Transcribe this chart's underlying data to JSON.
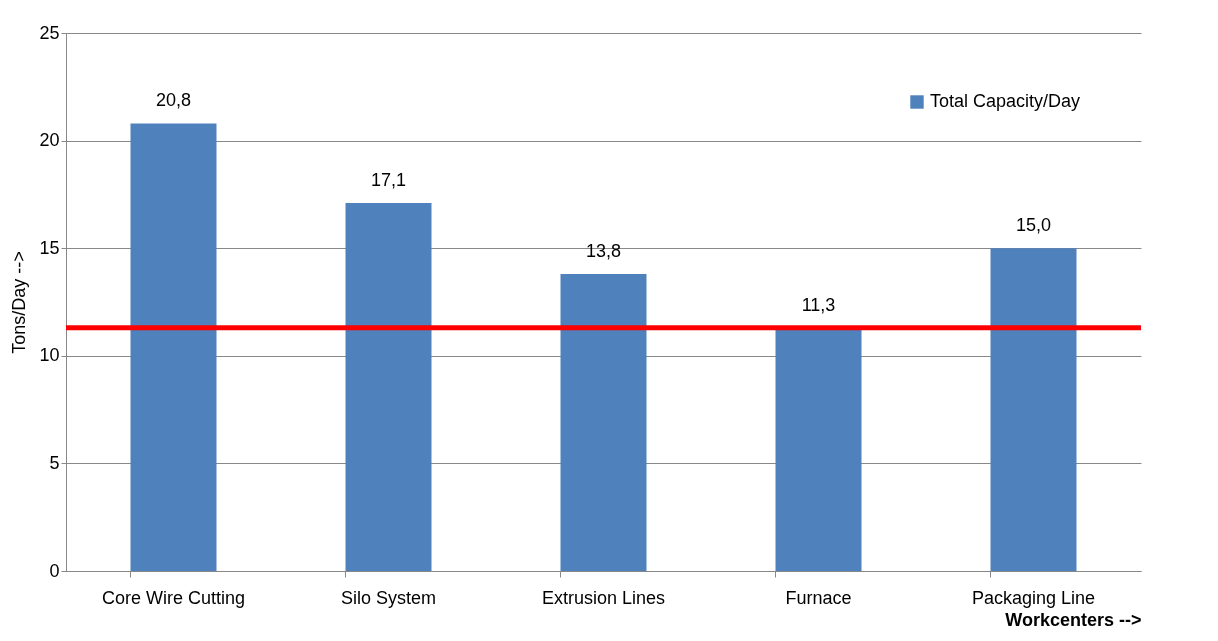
{
  "chart_data": {
    "type": "bar",
    "xlabel": "Workcenters -->",
    "ylabel": "Tons/Day -->",
    "categories": [
      "Core Wire Cutting",
      "Silo System",
      "Extrusion Lines",
      "Furnace",
      "Packaging Line"
    ],
    "series": [
      {
        "name": "Total Capacity/Day",
        "color": "#4f81bd",
        "values": [
          20.8,
          17.1,
          13.8,
          11.3,
          15.0
        ],
        "value_labels": [
          "20,8",
          "17,1",
          "13,8",
          "11,3",
          "15,0"
        ]
      }
    ],
    "ylim": [
      0,
      25
    ],
    "yticks": [
      0,
      5,
      10,
      15,
      20,
      25
    ],
    "grid": "y",
    "legend": "top right",
    "ref_lines": [
      {
        "axis": "y",
        "value": 11.3,
        "color": "#ff0000"
      }
    ]
  }
}
